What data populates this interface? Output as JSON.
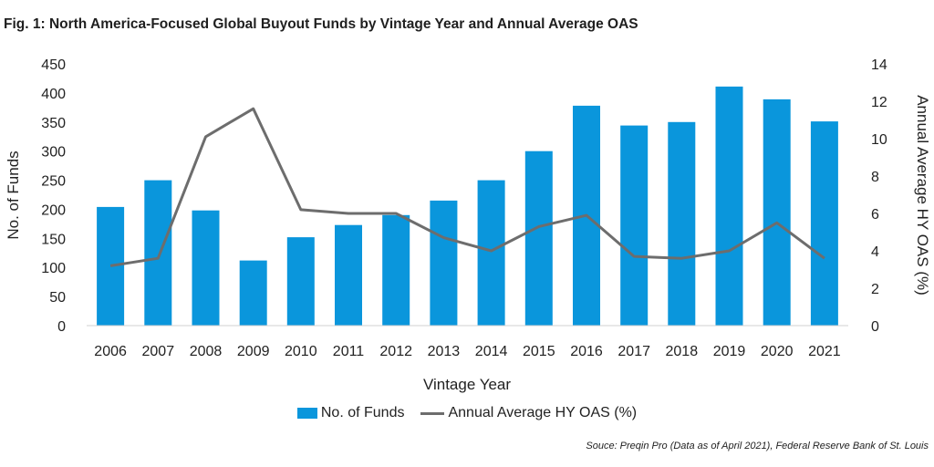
{
  "chart_data": {
    "type": "bar",
    "title": "Fig. 1: North America-Focused Global Buyout Funds by Vintage Year and Annual Average OAS",
    "xlabel": "Vintage Year",
    "ylabel": "No. of Funds",
    "y2label": "Annual Average HY OAS (%)",
    "ylim": [
      0,
      450
    ],
    "y2lim": [
      0,
      14
    ],
    "yticks": [
      0,
      50,
      100,
      150,
      200,
      250,
      300,
      350,
      400,
      450
    ],
    "y2ticks": [
      0,
      2,
      4,
      6,
      8,
      10,
      12,
      14
    ],
    "categories": [
      "2006",
      "2007",
      "2008",
      "2009",
      "2010",
      "2011",
      "2012",
      "2013",
      "2014",
      "2015",
      "2016",
      "2017",
      "2018",
      "2019",
      "2020",
      "2021"
    ],
    "series": [
      {
        "name": "No. of Funds",
        "type": "bar",
        "axis": "left",
        "color": "#0a96dc",
        "values": [
          204,
          250,
          198,
          112,
          152,
          173,
          190,
          215,
          250,
          300,
          378,
          344,
          350,
          411,
          389,
          351
        ]
      },
      {
        "name": "Annual Average HY OAS (%)",
        "type": "line",
        "axis": "right",
        "color": "#6d6d6d",
        "values": [
          3.2,
          3.6,
          10.1,
          11.6,
          6.2,
          6.0,
          6.0,
          4.7,
          4.0,
          5.3,
          5.9,
          3.7,
          3.6,
          4.0,
          5.5,
          3.6
        ]
      }
    ],
    "legend": [
      "No. of Funds",
      "Annual Average HY OAS (%)"
    ],
    "legend_position": "bottom",
    "grid": false
  },
  "source": "Souce: Preqin Pro (Data as of April 2021), Federal Reserve Bank of St. Louis"
}
